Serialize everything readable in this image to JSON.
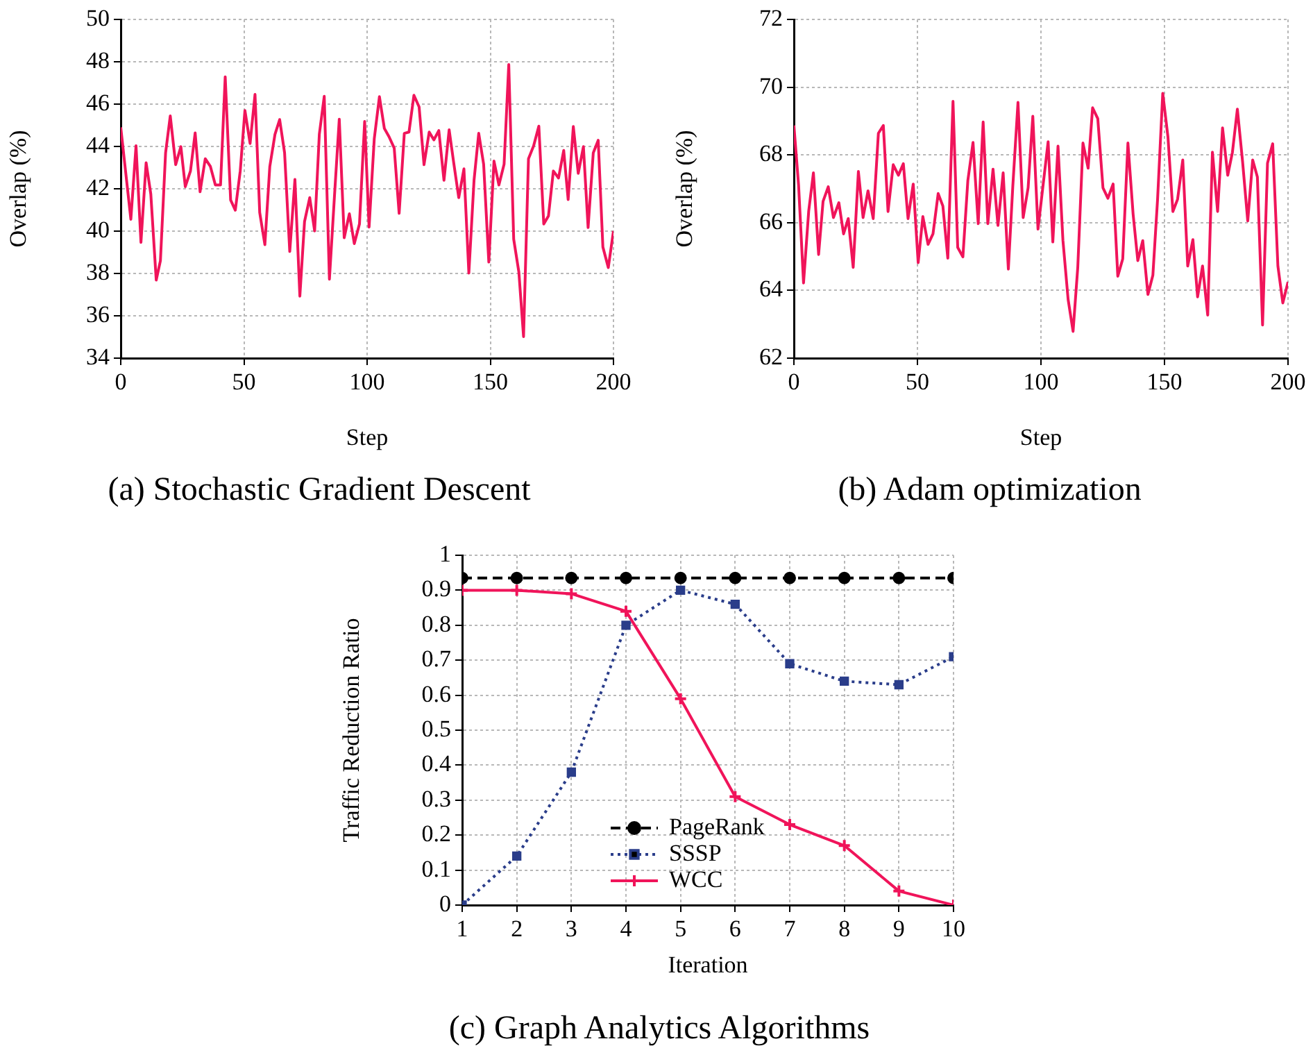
{
  "chart_data": [
    {
      "type": "line",
      "title": "(a) Stochastic Gradient Descent",
      "xlabel": "Step",
      "ylabel": "Overlap (%)",
      "xlim": [
        0,
        200
      ],
      "xticks": [
        0,
        50,
        100,
        150,
        200
      ],
      "ylim": [
        34,
        50
      ],
      "yticks": [
        34,
        36,
        38,
        40,
        42,
        44,
        46,
        48,
        50
      ],
      "grid": true,
      "legend": false,
      "marker": "none",
      "line_style": "solid",
      "series": [
        {
          "color": "#f0145a",
          "x": [
            0,
            4.1,
            6.2,
            8.2,
            10.3,
            12.2,
            14.4,
            16.1,
            18.2,
            20.1,
            22.3,
            24.4,
            26.2,
            28.3,
            30.2,
            32.2,
            34.3,
            36.4,
            38.4,
            40.5,
            42.4,
            44.6,
            46.5,
            48.5,
            50.4,
            52.5,
            54.5,
            56.4,
            58.5,
            60.5,
            62.6,
            64.5,
            66.5,
            68.6,
            70.7,
            72.7,
            74.6,
            76.7,
            78.7,
            80.6,
            82.6,
            84.7,
            86.8,
            88.7,
            90.7,
            92.8,
            94.8,
            96.9,
            99,
            100.8,
            102.9,
            105,
            107,
            108.9,
            111,
            113,
            115.1,
            117,
            119,
            121.1,
            123.1,
            125.2,
            127.1,
            129.1,
            131.2,
            133.3,
            135.1,
            137.2,
            139.3,
            141.3,
            143.4,
            145.3,
            147.3,
            149.4,
            151.5,
            153.5,
            155.6,
            157.5,
            159.5,
            161.6,
            163.5,
            165.5,
            167.6,
            169.7,
            171.7,
            173.6,
            175.6,
            177.7,
            179.8,
            181.6,
            183.7,
            185.7,
            187.8,
            189.7,
            191.8,
            193.8,
            195.7,
            197.9,
            200
          ],
          "values": [
            44.9,
            40.56,
            44.03,
            39.47,
            43.23,
            41.75,
            37.69,
            38.6,
            43.7,
            45.44,
            43.14,
            43.99,
            42.1,
            42.84,
            44.64,
            41.86,
            43.42,
            43.05,
            42.18,
            42.18,
            47.29,
            41.47,
            40.99,
            42.84,
            45.7,
            44.14,
            46.46,
            40.88,
            39.36,
            43.05,
            44.57,
            45.27,
            43.7,
            39.04,
            42.44,
            36.93,
            40.45,
            41.58,
            40.01,
            44.57,
            46.37,
            37.73,
            41.75,
            45.29,
            39.69,
            40.82,
            39.41,
            40.34,
            45.18,
            40.19,
            44.36,
            46.35,
            44.85,
            44.46,
            43.92,
            40.84,
            44.62,
            44.68,
            46.42,
            45.87,
            43.14,
            44.68,
            44.31,
            44.75,
            42.4,
            44.79,
            43.27,
            41.58,
            42.94,
            38.02,
            42.4,
            44.62,
            43.16,
            38.54,
            43.31,
            42.18,
            43.16,
            47.87,
            39.62,
            38.06,
            35.02,
            43.42,
            44.03,
            44.96,
            40.34,
            40.71,
            42.84,
            42.51,
            43.81,
            41.49,
            44.94,
            42.73,
            43.99,
            40.17,
            43.7,
            44.29,
            39.25,
            38.28,
            40.01
          ]
        }
      ]
    },
    {
      "type": "line",
      "title": "(b) Adam optimization",
      "xlabel": "Step",
      "ylabel": "Overlap (%)",
      "xlim": [
        0,
        200
      ],
      "xticks": [
        0,
        50,
        100,
        150,
        200
      ],
      "ylim": [
        62,
        72
      ],
      "yticks": [
        62,
        64,
        66,
        68,
        70,
        72
      ],
      "grid": true,
      "legend": false,
      "marker": "none",
      "line_style": "solid",
      "series": [
        {
          "color": "#f0145a",
          "x": [
            0,
            1.9,
            3.9,
            6,
            7.9,
            10,
            11.8,
            13.9,
            16,
            18.2,
            20.1,
            22,
            24,
            26.1,
            28,
            30,
            32.1,
            34.2,
            36.2,
            38.1,
            40.2,
            42.3,
            44.3,
            46.2,
            48.3,
            50.3,
            52.2,
            54.3,
            56.3,
            58.4,
            60.3,
            62.3,
            64.4,
            66.3,
            68.4,
            70.4,
            72.5,
            74.6,
            76.6,
            78.5,
            80.6,
            82.6,
            84.7,
            86.8,
            88.6,
            90.7,
            92.8,
            94.8,
            96.7,
            98.8,
            100.8,
            102.9,
            104.8,
            106.9,
            108.9,
            111,
            113,
            114.9,
            117,
            119.1,
            120.9,
            123,
            125.1,
            127.1,
            129.2,
            131.1,
            133.1,
            135.2,
            137.3,
            139.2,
            141.2,
            143.3,
            145.3,
            147.2,
            149.3,
            151.4,
            153.4,
            155.3,
            157.4,
            159.4,
            161.5,
            163.4,
            165.4,
            167.5,
            169.4,
            171.5,
            173.5,
            175.6,
            177.5,
            179.5,
            181.6,
            183.7,
            185.7,
            187.6,
            189.7,
            191.7,
            193.8,
            195.9,
            197.9,
            200
          ],
          "values": [
            68.87,
            67.1,
            64.22,
            66.35,
            67.47,
            65.06,
            66.63,
            67.06,
            66.15,
            66.59,
            65.67,
            66.12,
            64.68,
            67.51,
            66.15,
            66.94,
            66.12,
            68.64,
            68.87,
            66.33,
            67.71,
            67.4,
            67.74,
            66.12,
            67.14,
            64.82,
            66.18,
            65.36,
            65.67,
            66.86,
            66.49,
            64.95,
            69.58,
            65.27,
            64.99,
            67.24,
            68.37,
            65.97,
            68.97,
            65.97,
            67.58,
            65.92,
            67.47,
            64.63,
            67.07,
            69.55,
            66.15,
            67.03,
            69.14,
            65.81,
            67.07,
            68.39,
            65.43,
            68.26,
            65.47,
            63.73,
            62.79,
            64.68,
            68.35,
            67.61,
            69.39,
            69.07,
            67.03,
            66.72,
            67.14,
            64.42,
            64.93,
            68.35,
            66.25,
            64.88,
            65.47,
            63.88,
            64.45,
            66.69,
            69.82,
            68.53,
            66.33,
            66.69,
            67.85,
            64.72,
            65.5,
            63.81,
            64.72,
            63.27,
            68.08,
            66.33,
            68.8,
            67.4,
            68.08,
            69.35,
            67.81,
            66.05,
            67.85,
            67.35,
            62.98,
            67.76,
            68.33,
            64.72,
            63.63,
            64.25
          ]
        }
      ]
    },
    {
      "type": "line",
      "title": "(c) Graph Analytics Algorithms",
      "xlabel": "Iteration",
      "ylabel": "Traffic Reduction Ratio",
      "x": [
        1,
        2,
        3,
        4,
        5,
        6,
        7,
        8,
        9,
        10
      ],
      "xlim": [
        1,
        10
      ],
      "xticks": [
        1,
        2,
        3,
        4,
        5,
        6,
        7,
        8,
        9,
        10
      ],
      "ylim": [
        0,
        1
      ],
      "yticks": [
        0,
        0.1,
        0.2,
        0.3,
        0.4,
        0.5,
        0.6,
        0.7,
        0.8,
        0.9,
        1
      ],
      "grid": true,
      "legend": "bottom",
      "series": [
        {
          "name": "PageRank",
          "color": "#000000",
          "marker": "circle",
          "line_style": "dashed",
          "values": [
            0.935,
            0.935,
            0.935,
            0.935,
            0.935,
            0.935,
            0.935,
            0.935,
            0.935,
            0.935
          ]
        },
        {
          "name": "SSSP",
          "color": "#2a3d8a",
          "marker": "square",
          "line_style": "dotted",
          "values": [
            0,
            0.14,
            0.38,
            0.8,
            0.9,
            0.86,
            0.69,
            0.64,
            0.63,
            0.71
          ]
        },
        {
          "name": "WCC",
          "color": "#f0145a",
          "marker": "cross",
          "line_style": "solid",
          "values": [
            0.9,
            0.9,
            0.89,
            0.84,
            0.59,
            0.31,
            0.23,
            0.17,
            0.04,
            0
          ]
        }
      ]
    }
  ]
}
